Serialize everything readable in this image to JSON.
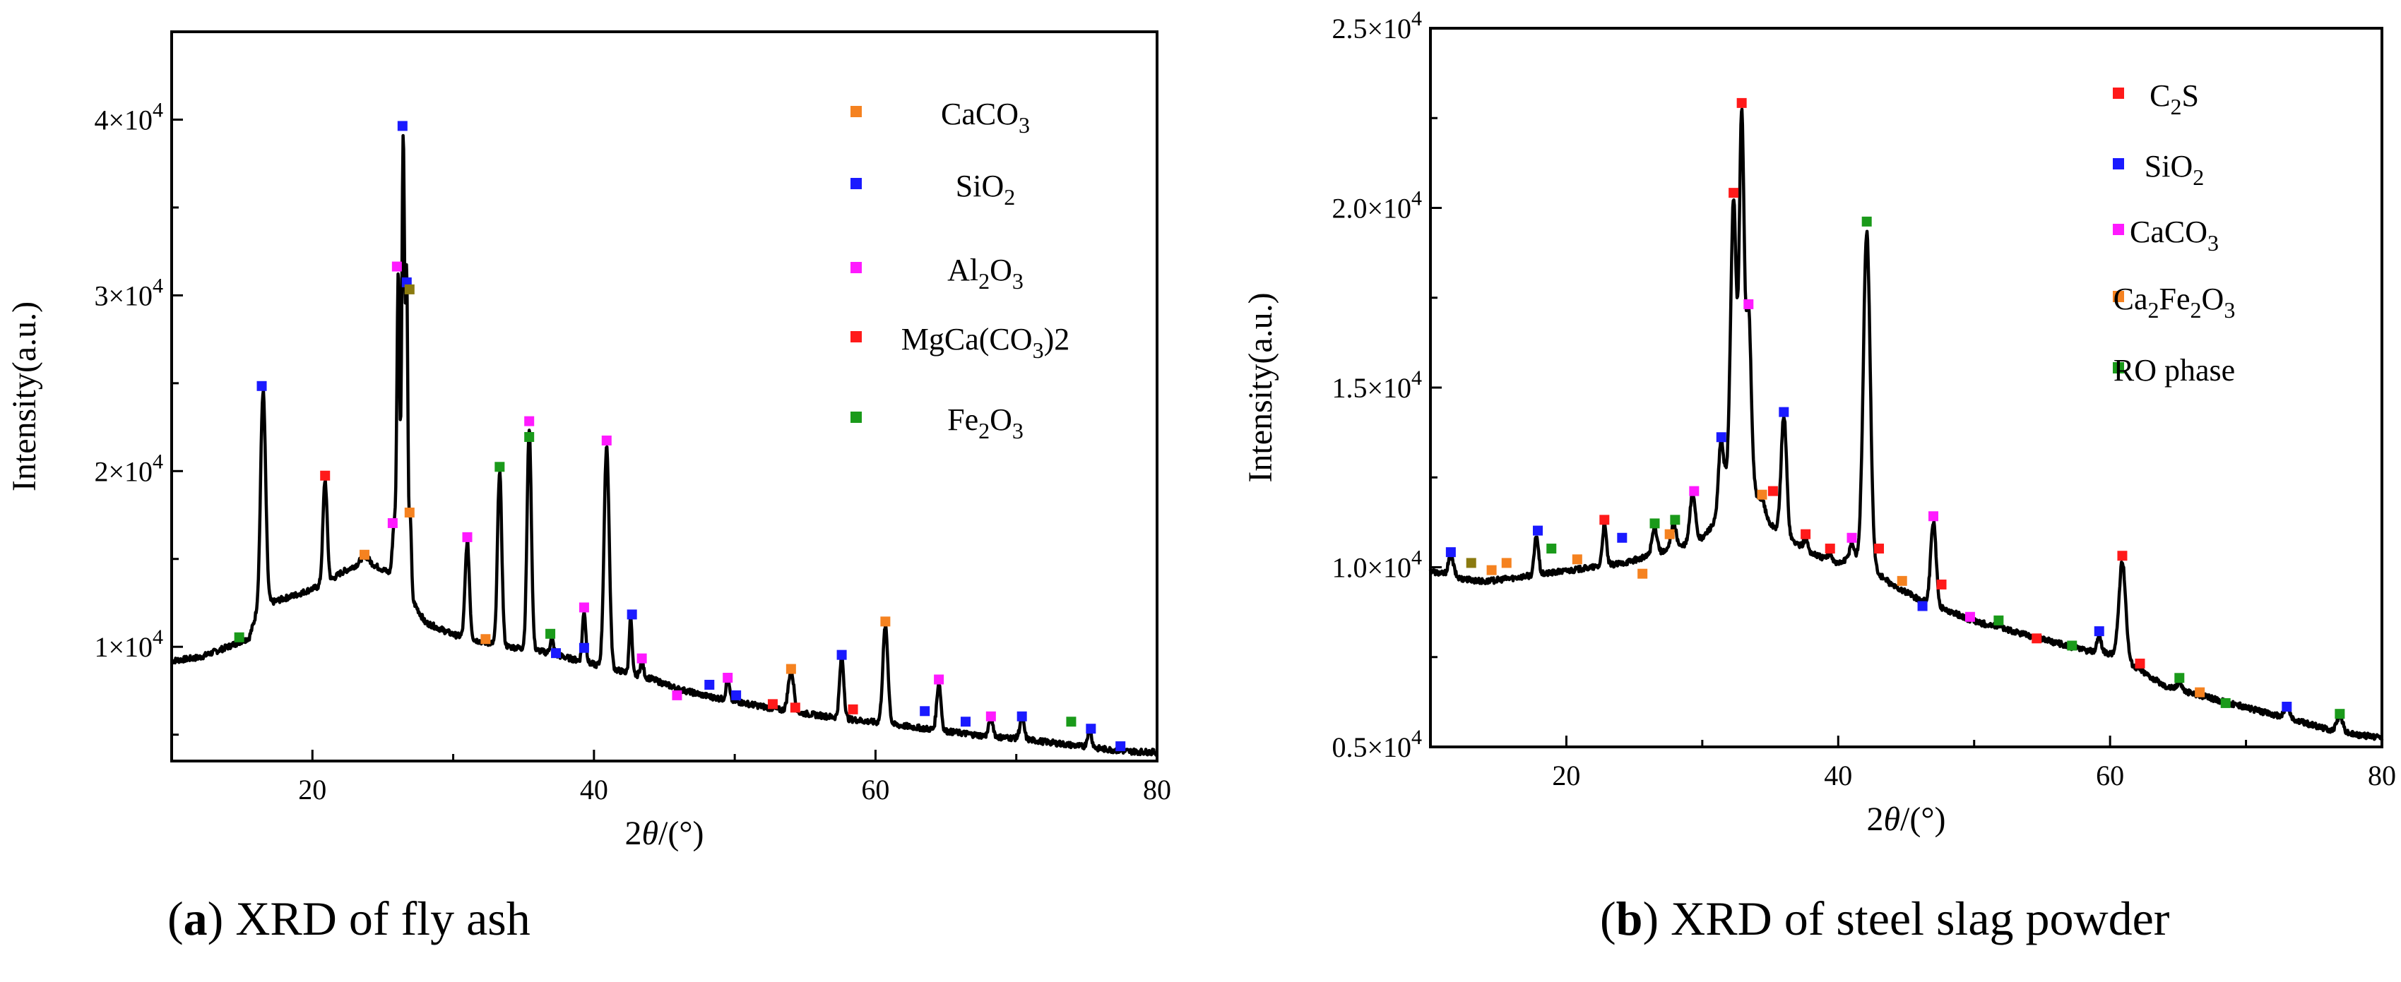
{
  "colors": {
    "orange": "#f58220",
    "blue": "#1a1aff",
    "magenta": "#ff1aff",
    "red": "#ff1a1a",
    "green": "#1a9a1a",
    "olive": "#8a7a10",
    "line": "#000000"
  },
  "chart_data": [
    {
      "type": "line",
      "id": "a",
      "caption": {
        "letter": "a",
        "text": " XRD of fly ash"
      },
      "xlabel_prefix": "2",
      "xlabel_theta": "θ",
      "xlabel_suffix": "/(°)",
      "ylabel": "Intensity(a.u.)",
      "xlim": [
        10,
        80
      ],
      "ylim": [
        3500,
        45000
      ],
      "xticks": [
        {
          "value": 20,
          "label": "20"
        },
        {
          "value": 40,
          "label": "40"
        },
        {
          "value": 60,
          "label": "60"
        },
        {
          "value": 80,
          "label": "80"
        }
      ],
      "yticks": [
        {
          "value": 10000,
          "mantissa": "1×10",
          "exp": "4"
        },
        {
          "value": 20000,
          "mantissa": "2×10",
          "exp": "4"
        },
        {
          "value": 30000,
          "mantissa": "3×10",
          "exp": "4"
        },
        {
          "value": 40000,
          "mantissa": "4×10",
          "exp": "4"
        }
      ],
      "legend": [
        {
          "label": "CaCO",
          "sub": "3",
          "color": "orange"
        },
        {
          "label": "SiO",
          "sub": "2",
          "color": "blue"
        },
        {
          "label": "Al",
          "sub": "2",
          "label2": "O",
          "sub2": "3",
          "color": "magenta"
        },
        {
          "label": "MgCa(CO",
          "sub": "3",
          "label2": ")2",
          "color": "red"
        },
        {
          "label": "Fe",
          "sub": "2",
          "label2": "O",
          "sub2": "3",
          "color": "green"
        }
      ],
      "baseline": [
        [
          10,
          9200
        ],
        [
          12,
          9400
        ],
        [
          14,
          10000
        ],
        [
          15.5,
          10500
        ],
        [
          16,
          11800
        ],
        [
          17,
          12500
        ],
        [
          19,
          13000
        ],
        [
          21,
          13600
        ],
        [
          22,
          14200
        ],
        [
          23,
          14600
        ],
        [
          24,
          14800
        ],
        [
          25,
          14400
        ],
        [
          26,
          14000
        ],
        [
          27,
          12800
        ],
        [
          28,
          11400
        ],
        [
          30,
          10700
        ],
        [
          32,
          10300
        ],
        [
          34,
          10000
        ],
        [
          36,
          9800
        ],
        [
          38,
          9400
        ],
        [
          40,
          9000
        ],
        [
          42,
          8600
        ],
        [
          44,
          8200
        ],
        [
          46,
          7600
        ],
        [
          48,
          7200
        ],
        [
          50,
          6900
        ],
        [
          52,
          6600
        ],
        [
          54,
          6300
        ],
        [
          56,
          6100
        ],
        [
          58,
          5900
        ],
        [
          60,
          5700
        ],
        [
          62,
          5500
        ],
        [
          64,
          5300
        ],
        [
          66,
          5100
        ],
        [
          68,
          4900
        ],
        [
          70,
          4800
        ],
        [
          72,
          4600
        ],
        [
          74,
          4400
        ],
        [
          76,
          4200
        ],
        [
          78,
          4050
        ],
        [
          80,
          4000
        ]
      ],
      "peaks": [
        {
          "x": 16.5,
          "y": 24800,
          "w": 0.18
        },
        {
          "x": 20.9,
          "y": 19600,
          "w": 0.15
        },
        {
          "x": 23.7,
          "y": 15200,
          "w": 0.25
        },
        {
          "x": 25.8,
          "y": 17000,
          "w": 0.12
        },
        {
          "x": 26.1,
          "y": 31600,
          "w": 0.1
        },
        {
          "x": 26.45,
          "y": 39600,
          "w": 0.1
        },
        {
          "x": 26.7,
          "y": 30700,
          "w": 0.08
        },
        {
          "x": 26.95,
          "y": 17500,
          "w": 0.08
        },
        {
          "x": 31.0,
          "y": 16100,
          "w": 0.15
        },
        {
          "x": 33.3,
          "y": 20200,
          "w": 0.15
        },
        {
          "x": 35.4,
          "y": 22700,
          "w": 0.15
        },
        {
          "x": 37.0,
          "y": 10500,
          "w": 0.12
        },
        {
          "x": 39.3,
          "y": 12100,
          "w": 0.12
        },
        {
          "x": 40.9,
          "y": 21700,
          "w": 0.18
        },
        {
          "x": 42.6,
          "y": 11800,
          "w": 0.1
        },
        {
          "x": 43.4,
          "y": 9200,
          "w": 0.12
        },
        {
          "x": 49.5,
          "y": 8200,
          "w": 0.12
        },
        {
          "x": 54.0,
          "y": 8700,
          "w": 0.2
        },
        {
          "x": 57.6,
          "y": 9500,
          "w": 0.15
        },
        {
          "x": 60.7,
          "y": 11300,
          "w": 0.18
        },
        {
          "x": 64.5,
          "y": 8000,
          "w": 0.15
        },
        {
          "x": 68.2,
          "y": 6000,
          "w": 0.15
        },
        {
          "x": 70.4,
          "y": 6000,
          "w": 0.15
        },
        {
          "x": 75.2,
          "y": 5300,
          "w": 0.15
        }
      ],
      "markers": [
        {
          "x": 14.8,
          "y": 10500,
          "color": "green"
        },
        {
          "x": 16.4,
          "y": 24800,
          "color": "blue"
        },
        {
          "x": 20.9,
          "y": 19700,
          "color": "red"
        },
        {
          "x": 23.7,
          "y": 15200,
          "color": "orange"
        },
        {
          "x": 25.7,
          "y": 17000,
          "color": "magenta"
        },
        {
          "x": 26.0,
          "y": 31600,
          "color": "magenta"
        },
        {
          "x": 26.4,
          "y": 39600,
          "color": "blue"
        },
        {
          "x": 26.7,
          "y": 30700,
          "color": "blue"
        },
        {
          "x": 26.9,
          "y": 30300,
          "color": "olive"
        },
        {
          "x": 26.9,
          "y": 17600,
          "color": "orange"
        },
        {
          "x": 31.0,
          "y": 16200,
          "color": "magenta"
        },
        {
          "x": 32.3,
          "y": 10400,
          "color": "orange"
        },
        {
          "x": 33.3,
          "y": 20200,
          "color": "green"
        },
        {
          "x": 35.4,
          "y": 22800,
          "color": "magenta"
        },
        {
          "x": 35.4,
          "y": 21900,
          "color": "green"
        },
        {
          "x": 36.9,
          "y": 10700,
          "color": "green"
        },
        {
          "x": 37.3,
          "y": 9600,
          "color": "blue"
        },
        {
          "x": 39.3,
          "y": 12200,
          "color": "magenta"
        },
        {
          "x": 39.3,
          "y": 9900,
          "color": "blue"
        },
        {
          "x": 40.9,
          "y": 21700,
          "color": "magenta"
        },
        {
          "x": 42.7,
          "y": 11800,
          "color": "blue"
        },
        {
          "x": 43.4,
          "y": 9300,
          "color": "magenta"
        },
        {
          "x": 45.9,
          "y": 7200,
          "color": "magenta"
        },
        {
          "x": 48.2,
          "y": 7800,
          "color": "blue"
        },
        {
          "x": 49.5,
          "y": 8200,
          "color": "magenta"
        },
        {
          "x": 50.1,
          "y": 7200,
          "color": "blue"
        },
        {
          "x": 52.7,
          "y": 6700,
          "color": "red"
        },
        {
          "x": 54.0,
          "y": 8700,
          "color": "orange"
        },
        {
          "x": 54.3,
          "y": 6500,
          "color": "red"
        },
        {
          "x": 57.6,
          "y": 9500,
          "color": "blue"
        },
        {
          "x": 58.4,
          "y": 6400,
          "color": "red"
        },
        {
          "x": 60.7,
          "y": 11400,
          "color": "orange"
        },
        {
          "x": 63.5,
          "y": 6300,
          "color": "blue"
        },
        {
          "x": 64.5,
          "y": 8100,
          "color": "magenta"
        },
        {
          "x": 66.4,
          "y": 5700,
          "color": "blue"
        },
        {
          "x": 68.2,
          "y": 6000,
          "color": "magenta"
        },
        {
          "x": 70.4,
          "y": 6000,
          "color": "blue"
        },
        {
          "x": 73.9,
          "y": 5700,
          "color": "green"
        },
        {
          "x": 75.3,
          "y": 5300,
          "color": "blue"
        },
        {
          "x": 77.4,
          "y": 4300,
          "color": "blue"
        }
      ]
    },
    {
      "type": "line",
      "id": "b",
      "caption": {
        "letter": "b",
        "text": " XRD of steel slag powder"
      },
      "xlabel_prefix": "2",
      "xlabel_theta": "θ",
      "xlabel_suffix": "/(°)",
      "ylabel": "Intensity(a.u.)",
      "xlim": [
        10,
        80
      ],
      "ylim": [
        5000,
        25000
      ],
      "xticks": [
        {
          "value": 20,
          "label": "20"
        },
        {
          "value": 40,
          "label": "40"
        },
        {
          "value": 60,
          "label": "60"
        },
        {
          "value": 80,
          "label": "80"
        }
      ],
      "yticks": [
        {
          "value": 5000,
          "mantissa": "0.5×10",
          "exp": "4"
        },
        {
          "value": 10000,
          "mantissa": "1.0×10",
          "exp": "4"
        },
        {
          "value": 15000,
          "mantissa": "1.5×10",
          "exp": "4"
        },
        {
          "value": 20000,
          "mantissa": "2.0×10",
          "exp": "4"
        },
        {
          "value": 25000,
          "mantissa": "2.5×10",
          "exp": "4"
        }
      ],
      "legend": [
        {
          "label": "C",
          "sub": "2",
          "label2": "S",
          "color": "red"
        },
        {
          "label": "SiO",
          "sub": "2",
          "color": "blue"
        },
        {
          "label": "CaCO",
          "sub": "3",
          "color": "magenta"
        },
        {
          "label": "Ca",
          "sub": "2",
          "label2": "Fe",
          "sub2": "2",
          "label3": "O",
          "sub3": "3",
          "color": "orange"
        },
        {
          "label": "RO phase",
          "color": "green"
        }
      ],
      "baseline": [
        [
          10,
          9900
        ],
        [
          12,
          9700
        ],
        [
          14,
          9600
        ],
        [
          16,
          9700
        ],
        [
          18,
          9800
        ],
        [
          20,
          9900
        ],
        [
          22,
          10000
        ],
        [
          24,
          10100
        ],
        [
          26,
          10300
        ],
        [
          28,
          10500
        ],
        [
          30,
          10800
        ],
        [
          31,
          11300
        ],
        [
          32,
          12800
        ],
        [
          33,
          13500
        ],
        [
          34,
          12000
        ],
        [
          35,
          11200
        ],
        [
          36,
          10900
        ],
        [
          38,
          10400
        ],
        [
          40,
          10100
        ],
        [
          41,
          10300
        ],
        [
          42,
          10200
        ],
        [
          43,
          9800
        ],
        [
          44,
          9500
        ],
        [
          46,
          9100
        ],
        [
          48,
          8800
        ],
        [
          50,
          8500
        ],
        [
          52,
          8300
        ],
        [
          54,
          8100
        ],
        [
          56,
          7900
        ],
        [
          58,
          7700
        ],
        [
          60,
          7600
        ],
        [
          62,
          7200
        ],
        [
          64,
          6700
        ],
        [
          66,
          6500
        ],
        [
          68,
          6300
        ],
        [
          70,
          6100
        ],
        [
          72,
          5900
        ],
        [
          74,
          5700
        ],
        [
          76,
          5500
        ],
        [
          78,
          5350
        ],
        [
          80,
          5250
        ]
      ],
      "peaks": [
        {
          "x": 11.5,
          "y": 10300,
          "w": 0.2
        },
        {
          "x": 17.8,
          "y": 10900,
          "w": 0.15
        },
        {
          "x": 22.8,
          "y": 11200,
          "w": 0.15
        },
        {
          "x": 26.5,
          "y": 11100,
          "w": 0.2
        },
        {
          "x": 27.9,
          "y": 11200,
          "w": 0.2
        },
        {
          "x": 29.3,
          "y": 12100,
          "w": 0.2
        },
        {
          "x": 31.4,
          "y": 13600,
          "w": 0.18
        },
        {
          "x": 32.3,
          "y": 20400,
          "w": 0.2
        },
        {
          "x": 32.9,
          "y": 22800,
          "w": 0.17
        },
        {
          "x": 33.4,
          "y": 17300,
          "w": 0.18
        },
        {
          "x": 34.4,
          "y": 11900,
          "w": 0.15
        },
        {
          "x": 36.0,
          "y": 14300,
          "w": 0.2
        },
        {
          "x": 37.6,
          "y": 10800,
          "w": 0.15
        },
        {
          "x": 39.4,
          "y": 10400,
          "w": 0.15
        },
        {
          "x": 41.0,
          "y": 10700,
          "w": 0.15
        },
        {
          "x": 42.1,
          "y": 19500,
          "w": 0.25
        },
        {
          "x": 47.0,
          "y": 11300,
          "w": 0.2
        },
        {
          "x": 51.8,
          "y": 8400,
          "w": 0.18
        },
        {
          "x": 59.2,
          "y": 8100,
          "w": 0.15
        },
        {
          "x": 60.9,
          "y": 10200,
          "w": 0.25
        },
        {
          "x": 65.1,
          "y": 6800,
          "w": 0.18
        },
        {
          "x": 73.0,
          "y": 6100,
          "w": 0.2
        },
        {
          "x": 76.9,
          "y": 5900,
          "w": 0.2
        }
      ],
      "markers": [
        {
          "x": 11.5,
          "y": 10400,
          "color": "blue"
        },
        {
          "x": 13.0,
          "y": 10100,
          "color": "olive"
        },
        {
          "x": 14.5,
          "y": 9900,
          "color": "orange"
        },
        {
          "x": 15.6,
          "y": 10100,
          "color": "orange"
        },
        {
          "x": 17.9,
          "y": 11000,
          "color": "blue"
        },
        {
          "x": 18.9,
          "y": 10500,
          "color": "green"
        },
        {
          "x": 20.8,
          "y": 10200,
          "color": "orange"
        },
        {
          "x": 22.8,
          "y": 11300,
          "color": "red"
        },
        {
          "x": 24.1,
          "y": 10800,
          "color": "blue"
        },
        {
          "x": 25.6,
          "y": 9800,
          "color": "orange"
        },
        {
          "x": 26.5,
          "y": 11200,
          "color": "green"
        },
        {
          "x": 27.6,
          "y": 10900,
          "color": "orange"
        },
        {
          "x": 28.0,
          "y": 11300,
          "color": "green"
        },
        {
          "x": 29.4,
          "y": 12100,
          "color": "magenta"
        },
        {
          "x": 31.4,
          "y": 13600,
          "color": "blue"
        },
        {
          "x": 32.3,
          "y": 20400,
          "color": "red"
        },
        {
          "x": 32.9,
          "y": 22900,
          "color": "red"
        },
        {
          "x": 33.4,
          "y": 17300,
          "color": "magenta"
        },
        {
          "x": 34.4,
          "y": 12000,
          "color": "orange"
        },
        {
          "x": 35.2,
          "y": 12100,
          "color": "red"
        },
        {
          "x": 36.0,
          "y": 14300,
          "color": "blue"
        },
        {
          "x": 37.6,
          "y": 10900,
          "color": "red"
        },
        {
          "x": 39.4,
          "y": 10500,
          "color": "red"
        },
        {
          "x": 41.0,
          "y": 10800,
          "color": "magenta"
        },
        {
          "x": 42.1,
          "y": 19600,
          "color": "green"
        },
        {
          "x": 43.0,
          "y": 10500,
          "color": "red"
        },
        {
          "x": 44.7,
          "y": 9600,
          "color": "orange"
        },
        {
          "x": 46.2,
          "y": 8900,
          "color": "blue"
        },
        {
          "x": 47.0,
          "y": 11400,
          "color": "magenta"
        },
        {
          "x": 47.6,
          "y": 9500,
          "color": "red"
        },
        {
          "x": 49.7,
          "y": 8600,
          "color": "magenta"
        },
        {
          "x": 51.8,
          "y": 8500,
          "color": "green"
        },
        {
          "x": 54.6,
          "y": 8000,
          "color": "red"
        },
        {
          "x": 57.2,
          "y": 7800,
          "color": "green"
        },
        {
          "x": 59.2,
          "y": 8200,
          "color": "blue"
        },
        {
          "x": 60.9,
          "y": 10300,
          "color": "red"
        },
        {
          "x": 62.2,
          "y": 7300,
          "color": "red"
        },
        {
          "x": 65.1,
          "y": 6900,
          "color": "green"
        },
        {
          "x": 66.6,
          "y": 6500,
          "color": "orange"
        },
        {
          "x": 68.5,
          "y": 6200,
          "color": "green"
        },
        {
          "x": 73.0,
          "y": 6100,
          "color": "blue"
        },
        {
          "x": 76.9,
          "y": 5900,
          "color": "green"
        }
      ]
    }
  ]
}
